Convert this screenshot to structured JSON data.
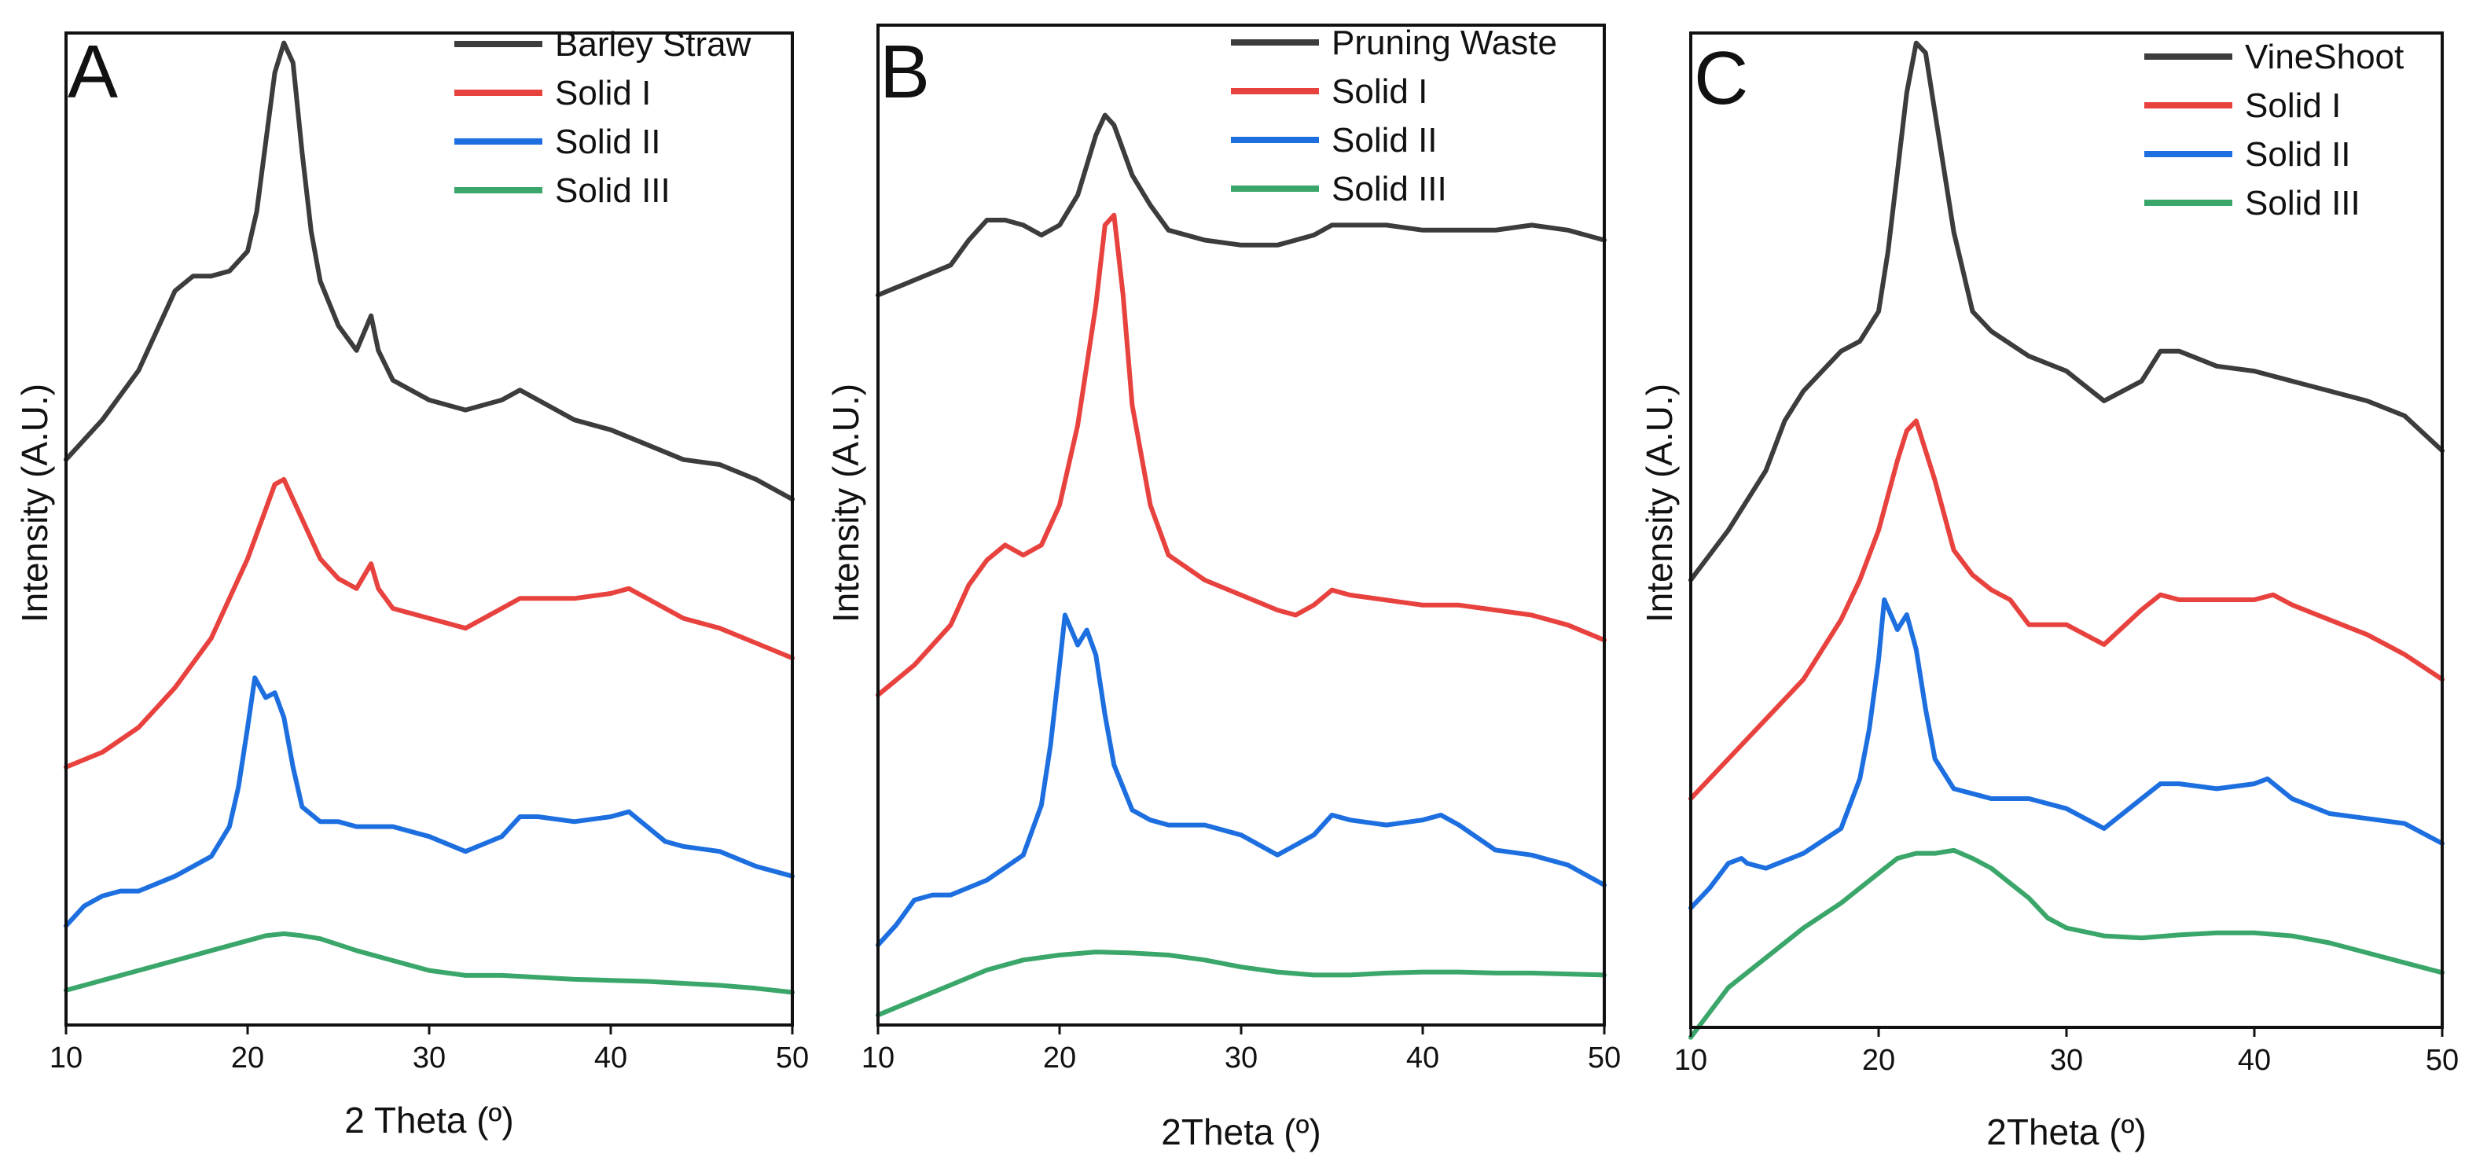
{
  "chart_data": [
    {
      "type": "line",
      "panel_label": "A",
      "xlabel": "2 Theta (º)",
      "ylabel": "Intensity (A.U.)",
      "xlim": [
        10,
        50
      ],
      "ylim": [
        0,
        100
      ],
      "xticks": [
        "10",
        "20",
        "30",
        "40",
        "50"
      ],
      "legend": [
        "Barley Straw",
        "Solid I",
        "Solid II",
        "Solid III"
      ],
      "legend_position": "top-right",
      "series": [
        {
          "name": "Barley Straw",
          "color": "#3c3c3c",
          "x": [
            10,
            12,
            14,
            15,
            16,
            17,
            18,
            19,
            20,
            20.5,
            21,
            21.5,
            22,
            22.5,
            23,
            23.5,
            24,
            25,
            26,
            26.8,
            27.2,
            28,
            30,
            32,
            34,
            35,
            36,
            38,
            40,
            42,
            44,
            46,
            48,
            50
          ],
          "y": [
            57,
            61,
            66,
            70,
            74,
            75.5,
            75.5,
            76,
            78,
            82,
            89,
            96,
            99,
            97,
            88,
            80,
            75,
            70.5,
            68,
            71.5,
            68,
            65,
            63,
            62,
            63,
            64,
            63,
            61,
            60,
            58.5,
            57,
            56.5,
            55,
            53
          ]
        },
        {
          "name": "Solid I",
          "color": "#e8423f",
          "x": [
            10,
            12,
            14,
            16,
            18,
            19,
            20,
            21,
            21.5,
            22,
            23,
            24,
            25,
            26,
            26.8,
            27.2,
            28,
            30,
            32,
            34,
            35,
            36,
            38,
            40,
            41,
            42,
            44,
            46,
            48,
            50
          ],
          "y": [
            26,
            27.5,
            30,
            34,
            39,
            43,
            47,
            52,
            54.5,
            55,
            51,
            47,
            45,
            44,
            46.5,
            44,
            42,
            41,
            40,
            42,
            43,
            43,
            43,
            43.5,
            44,
            43,
            41,
            40,
            38.5,
            37
          ]
        },
        {
          "name": "Solid II",
          "color": "#1d6fe0",
          "x": [
            10,
            11,
            12,
            13,
            14,
            16,
            18,
            19,
            19.5,
            20,
            20.4,
            21,
            21.5,
            22,
            22.5,
            23,
            24,
            25,
            26,
            28,
            30,
            32,
            34,
            35,
            36,
            38,
            40,
            41,
            42,
            43,
            44,
            46,
            48,
            50
          ],
          "y": [
            10,
            12,
            13,
            13.5,
            13.5,
            15,
            17,
            20,
            24,
            30,
            35,
            33,
            33.5,
            31,
            26,
            22,
            20.5,
            20.5,
            20,
            20,
            19,
            17.5,
            19,
            21,
            21,
            20.5,
            21,
            21.5,
            20,
            18.5,
            18,
            17.5,
            16,
            15
          ]
        },
        {
          "name": "Solid III",
          "color": "#3aa66a",
          "x": [
            10,
            12,
            14,
            16,
            18,
            20,
            21,
            22,
            23,
            24,
            26,
            28,
            30,
            32,
            34,
            36,
            38,
            40,
            42,
            44,
            46,
            48,
            50
          ],
          "y": [
            3.5,
            4.5,
            5.5,
            6.5,
            7.5,
            8.5,
            9,
            9.2,
            9,
            8.7,
            7.5,
            6.5,
            5.5,
            5,
            5,
            4.8,
            4.6,
            4.5,
            4.4,
            4.2,
            4,
            3.7,
            3.3
          ]
        }
      ]
    },
    {
      "type": "line",
      "panel_label": "B",
      "xlabel": "2Theta (º)",
      "ylabel": "Intensity (A.U.)",
      "xlim": [
        10,
        50
      ],
      "ylim": [
        0,
        100
      ],
      "xticks": [
        "10",
        "20",
        "30",
        "40",
        "50"
      ],
      "legend": [
        "Pruning Waste",
        "Solid I",
        "Solid II",
        "Solid III"
      ],
      "legend_position": "top-right",
      "series": [
        {
          "name": "Pruning Waste",
          "color": "#3c3c3c",
          "x": [
            10,
            12,
            14,
            15,
            16,
            17,
            18,
            19,
            20,
            21,
            21.5,
            22,
            22.5,
            23,
            24,
            25,
            26,
            28,
            30,
            32,
            33,
            34,
            35,
            36,
            38,
            40,
            42,
            44,
            46,
            48,
            50
          ],
          "y": [
            73,
            74.5,
            76,
            78.5,
            80.5,
            80.5,
            80,
            79,
            80,
            83,
            86,
            89,
            91,
            90,
            85,
            82,
            79.5,
            78.5,
            78,
            78,
            78.5,
            79,
            80,
            80,
            80,
            79.5,
            79.5,
            79.5,
            80,
            79.5,
            78.5
          ]
        },
        {
          "name": "Solid I",
          "color": "#e8423f",
          "x": [
            10,
            12,
            14,
            15,
            16,
            17,
            18,
            19,
            20,
            21,
            22,
            22.5,
            23,
            23.5,
            24,
            25,
            26,
            28,
            30,
            32,
            33,
            34,
            35,
            36,
            38,
            40,
            42,
            44,
            46,
            48,
            50
          ],
          "y": [
            33,
            36,
            40,
            44,
            46.5,
            48,
            47,
            48,
            52,
            60,
            72,
            80,
            81,
            73,
            62,
            52,
            47,
            44.5,
            43,
            41.5,
            41,
            42,
            43.5,
            43,
            42.5,
            42,
            42,
            41.5,
            41,
            40,
            38.5
          ]
        },
        {
          "name": "Solid II",
          "color": "#1d6fe0",
          "x": [
            10,
            11,
            12,
            13,
            14,
            16,
            18,
            19,
            19.5,
            20,
            20.3,
            21,
            21.5,
            22,
            22.5,
            23,
            24,
            25,
            26,
            28,
            30,
            32,
            34,
            35,
            36,
            38,
            40,
            41,
            42,
            44,
            46,
            48,
            50
          ],
          "y": [
            8,
            10,
            12.5,
            13,
            13,
            14.5,
            17,
            22,
            28,
            36,
            41,
            38,
            39.5,
            37,
            31,
            26,
            21.5,
            20.5,
            20,
            20,
            19,
            17,
            19,
            21,
            20.5,
            20,
            20.5,
            21,
            20,
            17.5,
            17,
            16,
            14
          ]
        },
        {
          "name": "Solid III",
          "color": "#3aa66a",
          "x": [
            10,
            12,
            14,
            16,
            18,
            20,
            22,
            24,
            26,
            28,
            30,
            32,
            34,
            36,
            38,
            40,
            42,
            44,
            46,
            48,
            50
          ],
          "y": [
            1,
            2.5,
            4,
            5.5,
            6.5,
            7,
            7.3,
            7.2,
            7,
            6.5,
            5.8,
            5.3,
            5,
            5,
            5.2,
            5.3,
            5.3,
            5.2,
            5.2,
            5.1,
            5
          ]
        }
      ]
    },
    {
      "type": "line",
      "panel_label": "C",
      "xlabel": "2Theta (º)",
      "ylabel": "Intensity (A.U.)",
      "xlim": [
        10,
        50
      ],
      "ylim": [
        0,
        100
      ],
      "xticks": [
        "10",
        "20",
        "30",
        "40",
        "50"
      ],
      "legend": [
        "VineShoot",
        "Solid I",
        "Solid II",
        "Solid III"
      ],
      "legend_position": "top-right",
      "series": [
        {
          "name": "VineShoot",
          "color": "#3c3c3c",
          "x": [
            10,
            12,
            14,
            15,
            16,
            17,
            18,
            19,
            20,
            20.5,
            21,
            21.5,
            22,
            22.5,
            23,
            23.5,
            24,
            24.5,
            25,
            26,
            28,
            30,
            32,
            34,
            35,
            36,
            38,
            40,
            42,
            44,
            46,
            48,
            50
          ],
          "y": [
            45,
            50,
            56,
            61,
            64,
            66,
            68,
            69,
            72,
            78,
            86,
            94,
            99,
            98,
            92,
            86,
            80,
            76,
            72,
            70,
            67.5,
            66,
            63,
            65,
            68,
            68,
            66.5,
            66,
            65,
            64,
            63,
            61.5,
            58
          ]
        },
        {
          "name": "Solid I",
          "color": "#e8423f",
          "x": [
            10,
            12,
            14,
            16,
            18,
            19,
            20,
            21,
            21.5,
            22,
            23,
            24,
            25,
            26,
            27,
            28,
            30,
            32,
            34,
            35,
            36,
            38,
            40,
            41,
            42,
            44,
            46,
            48,
            50
          ],
          "y": [
            23,
            27,
            31,
            35,
            41,
            45,
            50,
            57,
            60,
            61,
            55,
            48,
            45.5,
            44,
            43,
            40.5,
            40.5,
            38.5,
            42,
            43.5,
            43,
            43,
            43,
            43.5,
            42.5,
            41,
            39.5,
            37.5,
            35
          ]
        },
        {
          "name": "Solid II",
          "color": "#1d6fe0",
          "x": [
            10,
            11,
            12,
            12.7,
            13,
            14,
            16,
            18,
            19,
            19.5,
            20,
            20.3,
            21,
            21.5,
            22,
            22.5,
            23,
            24,
            25,
            26,
            28,
            30,
            32,
            34,
            35,
            36,
            38,
            40,
            40.7,
            42,
            44,
            46,
            48,
            50
          ],
          "y": [
            12,
            14,
            16.5,
            17,
            16.5,
            16,
            17.5,
            20,
            25,
            30,
            37,
            43,
            40,
            41.5,
            38,
            32,
            27,
            24,
            23.5,
            23,
            23,
            22,
            20,
            23,
            24.5,
            24.5,
            24,
            24.5,
            25,
            23,
            21.5,
            21,
            20.5,
            18.5
          ]
        },
        {
          "name": "Solid III",
          "color": "#3aa66a",
          "x": [
            10,
            11,
            12,
            14,
            16,
            18,
            20,
            21,
            22,
            23,
            24,
            25,
            26,
            27,
            28,
            29,
            30,
            32,
            34,
            36,
            38,
            40,
            42,
            44,
            46,
            48,
            50
          ],
          "y": [
            -1,
            1.5,
            4,
            7,
            10,
            12.5,
            15.5,
            17,
            17.5,
            17.5,
            17.8,
            17,
            16,
            14.5,
            13,
            11,
            10,
            9.2,
            9,
            9.3,
            9.5,
            9.5,
            9.2,
            8.5,
            7.5,
            6.5,
            5.5
          ]
        }
      ]
    }
  ]
}
